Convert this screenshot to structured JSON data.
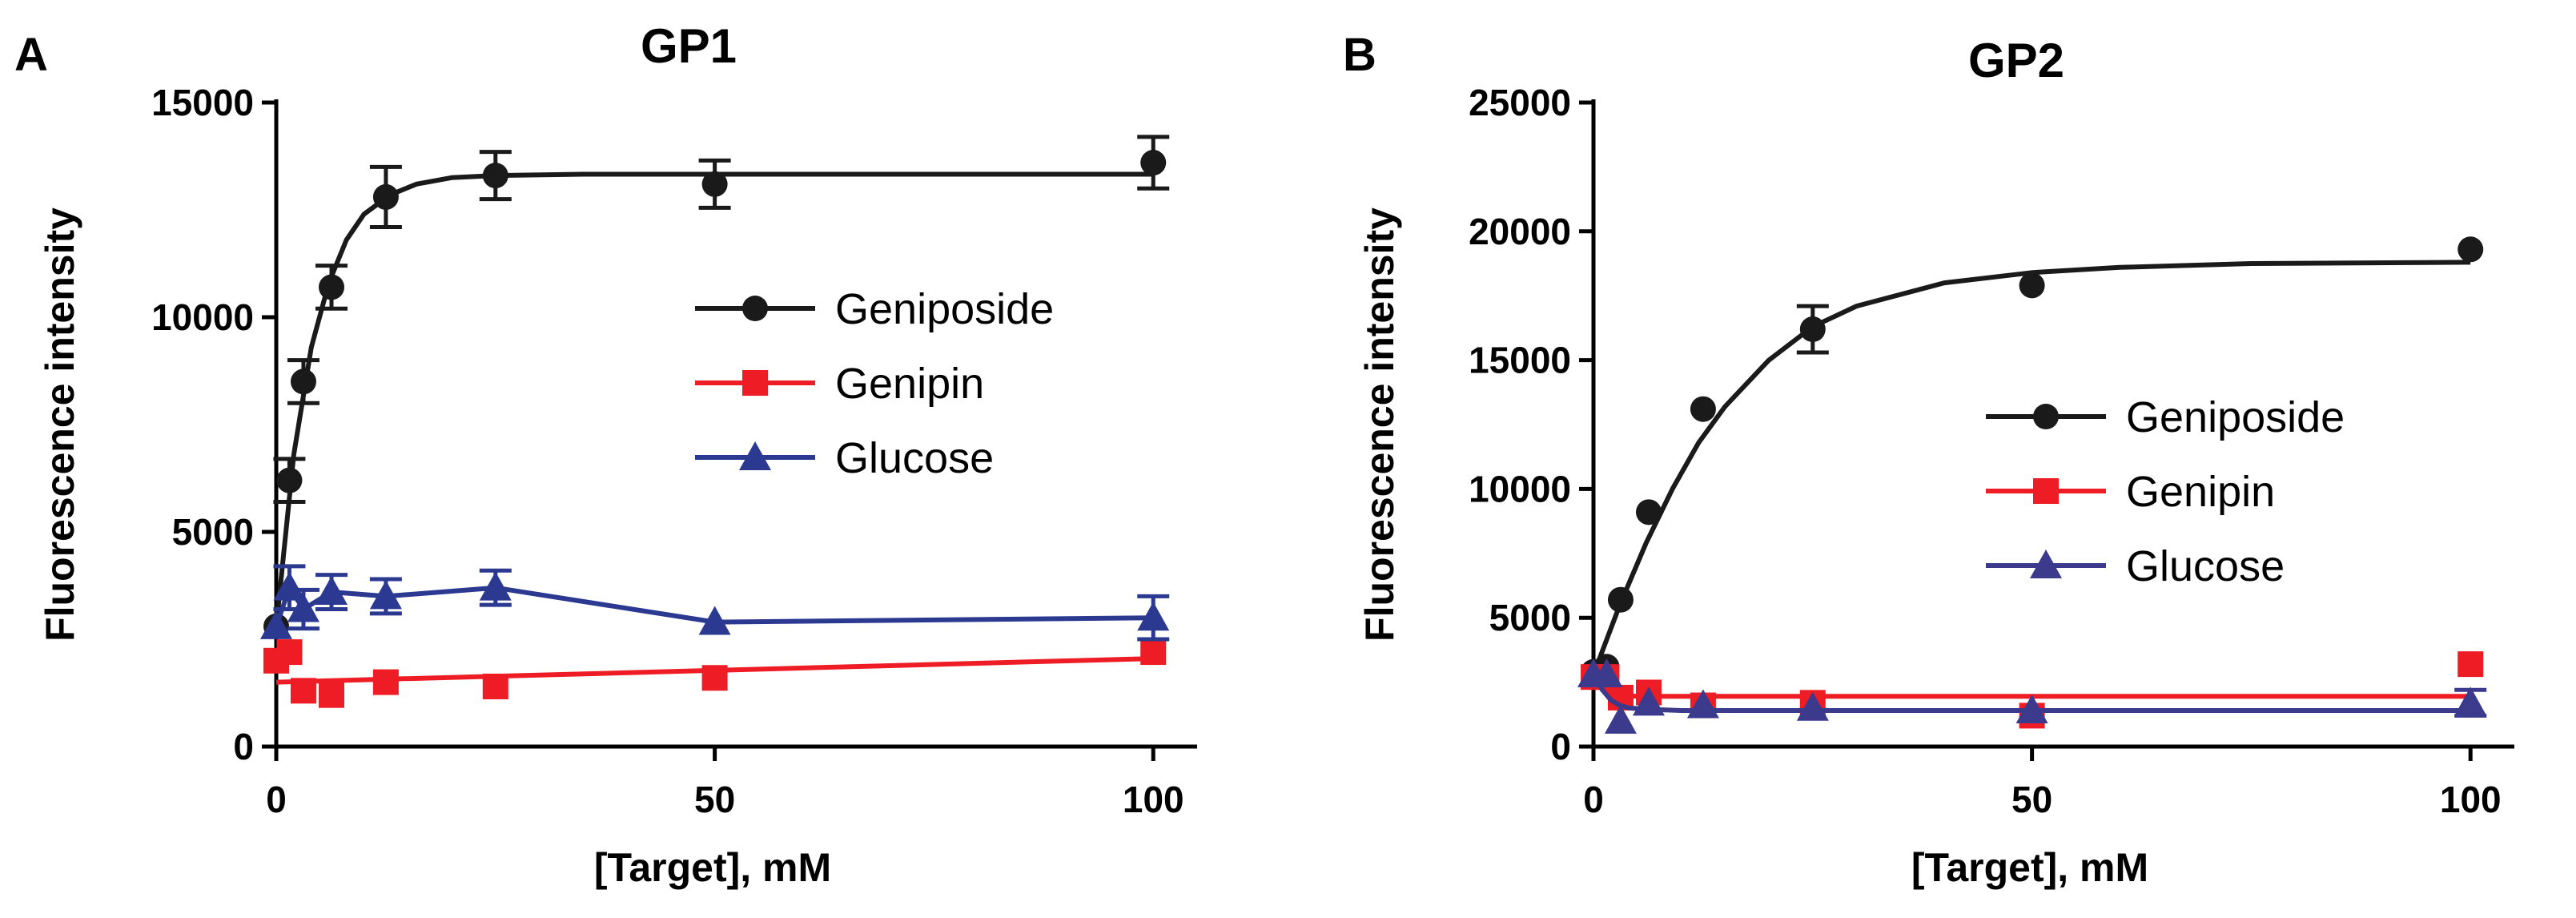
{
  "chart_data": [
    {
      "type": "scatter",
      "panel_label": "A",
      "title": "GP1",
      "xlabel": "[Target], mM",
      "ylabel": "Fluorescence intensity",
      "xlim": [
        0,
        105
      ],
      "ylim": [
        0,
        15000
      ],
      "x_ticks": [
        0,
        50,
        100
      ],
      "y_ticks": [
        0,
        5000,
        10000,
        15000
      ],
      "x_tick_labels": [
        "0",
        "50",
        "100"
      ],
      "y_tick_labels": [
        "0",
        "5000",
        "10000",
        "15000"
      ],
      "grid": false,
      "legend_position": "center-right",
      "series": [
        {
          "name": "Geniposide",
          "color": "#1a1a1a",
          "marker": "circle",
          "fit": "saturation",
          "x": [
            0,
            1.5,
            3.1,
            6.3,
            12.5,
            25,
            50,
            100
          ],
          "y": [
            2800,
            6200,
            8500,
            10700,
            12800,
            13300,
            13100,
            13600
          ],
          "error": [
            0,
            500,
            500,
            500,
            700,
            550,
            550,
            600
          ],
          "fit_curve": {
            "x": [
              0,
              2,
              4,
              6,
              8,
              10,
              13,
              16,
              20,
              25,
              35,
              50,
              75,
              100
            ],
            "y": [
              2800,
              6800,
              9300,
              10800,
              11800,
              12400,
              12850,
              13100,
              13250,
              13300,
              13330,
              13330,
              13330,
              13330
            ]
          }
        },
        {
          "name": "Genipin",
          "color": "#ee1c25",
          "marker": "square",
          "fit": "linear",
          "x": [
            0,
            1.5,
            3.1,
            6.3,
            12.5,
            25,
            50,
            100
          ],
          "y": [
            2000,
            2200,
            1300,
            1200,
            1500,
            1400,
            1600,
            2200
          ],
          "error": [
            0,
            0,
            0,
            0,
            0,
            0,
            0,
            0
          ],
          "fit_curve": {
            "x": [
              0,
              100
            ],
            "y": [
              1500,
              2050
            ]
          }
        },
        {
          "name": "Glucose",
          "color": "#2b3990",
          "marker": "triangle",
          "fit": "connect",
          "x": [
            0,
            1.5,
            3.1,
            6.3,
            12.5,
            25,
            50,
            100
          ],
          "y": [
            2800,
            3700,
            3200,
            3600,
            3500,
            3700,
            2900,
            3000
          ],
          "error": [
            0,
            500,
            450,
            400,
            400,
            400,
            0,
            500
          ],
          "fit_curve": {
            "x": [
              0,
              1.5,
              3.1,
              6.3,
              12.5,
              25,
              50,
              100
            ],
            "y": [
              2800,
              3700,
              3200,
              3600,
              3500,
              3700,
              2900,
              3000
            ]
          }
        }
      ]
    },
    {
      "type": "scatter",
      "panel_label": "B",
      "title": "GP2",
      "xlabel": "[Target], mM",
      "ylabel": "Fluorescence intensity",
      "xlim": [
        0,
        105
      ],
      "ylim": [
        0,
        25000
      ],
      "x_ticks": [
        0,
        50,
        100
      ],
      "y_ticks": [
        0,
        5000,
        10000,
        15000,
        20000,
        25000
      ],
      "x_tick_labels": [
        "0",
        "50",
        "100"
      ],
      "y_tick_labels": [
        "0",
        "5000",
        "10000",
        "15000",
        "20000",
        "25000"
      ],
      "grid": false,
      "legend_position": "center-right",
      "series": [
        {
          "name": "Geniposide",
          "color": "#1a1a1a",
          "marker": "circle",
          "fit": "saturation",
          "x": [
            0,
            1.5,
            3.1,
            6.3,
            12.5,
            25,
            50,
            100
          ],
          "y": [
            2900,
            3100,
            5700,
            9100,
            13100,
            16200,
            17900,
            19300
          ],
          "error": [
            0,
            0,
            0,
            0,
            0,
            900,
            0,
            0
          ],
          "fit_curve": {
            "x": [
              0,
              3,
              6,
              9,
              12,
              15,
              20,
              25,
              30,
              40,
              50,
              60,
              75,
              100
            ],
            "y": [
              2800,
              5500,
              7900,
              10000,
              11800,
              13200,
              15000,
              16300,
              17100,
              18000,
              18400,
              18600,
              18750,
              18800
            ]
          }
        },
        {
          "name": "Genipin",
          "color": "#ee1c25",
          "marker": "square",
          "fit": "decay",
          "x": [
            0,
            1.5,
            3.1,
            6.3,
            12.5,
            25,
            50,
            100
          ],
          "y": [
            2700,
            2700,
            1900,
            2100,
            1600,
            1700,
            1200,
            3200
          ],
          "error": [
            0,
            0,
            0,
            0,
            0,
            0,
            0,
            0
          ],
          "fit_curve": {
            "x": [
              0,
              1,
              2,
              3,
              5,
              8,
              100
            ],
            "y": [
              2700,
              2300,
              2100,
              2000,
              1950,
              1950,
              1950
            ]
          }
        },
        {
          "name": "Glucose",
          "color": "#3b3a8c",
          "marker": "triangle",
          "fit": "decay",
          "x": [
            0,
            1.5,
            3.1,
            6.3,
            12.5,
            25,
            50,
            100
          ],
          "y": [
            2800,
            2800,
            1000,
            1700,
            1600,
            1500,
            1400,
            1700
          ],
          "error": [
            0,
            0,
            0,
            0,
            0,
            0,
            0,
            500
          ],
          "fit_curve": {
            "x": [
              0,
              1,
              2,
              3,
              4,
              6,
              10,
              100
            ],
            "y": [
              2800,
              2200,
              1800,
              1600,
              1500,
              1450,
              1400,
              1400
            ]
          }
        }
      ]
    }
  ]
}
